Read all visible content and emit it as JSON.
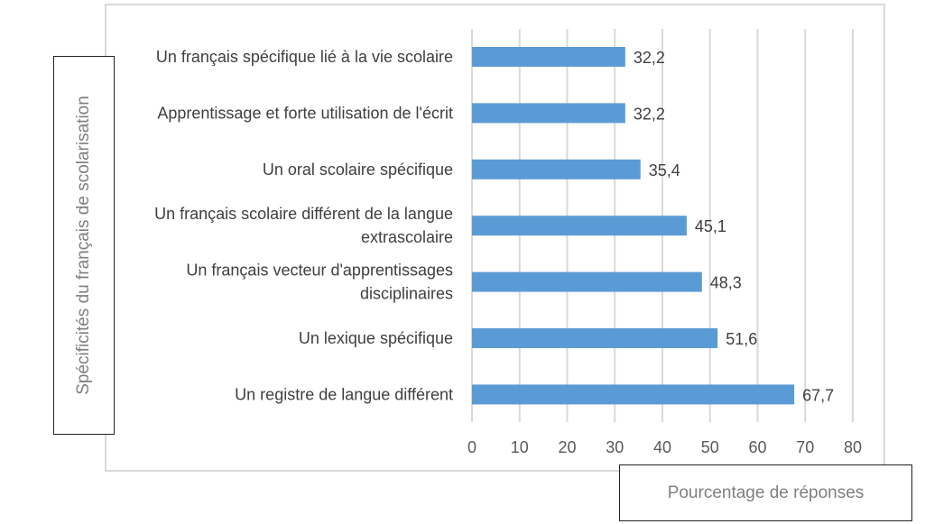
{
  "chart_data": {
    "type": "bar",
    "orientation": "horizontal",
    "title": "",
    "xlabel": "Pourcentage de réponses",
    "ylabel": "Spécificités du français de scolarisation",
    "xlim": [
      0,
      80
    ],
    "xticks": [
      "0",
      "10",
      "20",
      "30",
      "40",
      "50",
      "60",
      "70",
      "80"
    ],
    "grid": "vertical",
    "bar_color": "#5b9bd5",
    "categories": [
      [
        "Un français spécifique lié à la vie scolaire"
      ],
      [
        "Apprentissage et forte utilisation de l'écrit"
      ],
      [
        "Un oral scolaire spécifique"
      ],
      [
        "Un français scolaire différent de la langue",
        "extrascolaire"
      ],
      [
        "Un français vecteur d'apprentissages",
        "disciplinaires"
      ],
      [
        "Un lexique spécifique"
      ],
      [
        "Un registre de langue différent"
      ]
    ],
    "values": [
      32.2,
      32.2,
      35.4,
      45.1,
      48.3,
      51.6,
      67.7
    ],
    "data_labels": [
      "32,2",
      "32,2",
      "35,4",
      "45,1",
      "48,3",
      "51,6",
      "67,7"
    ]
  }
}
